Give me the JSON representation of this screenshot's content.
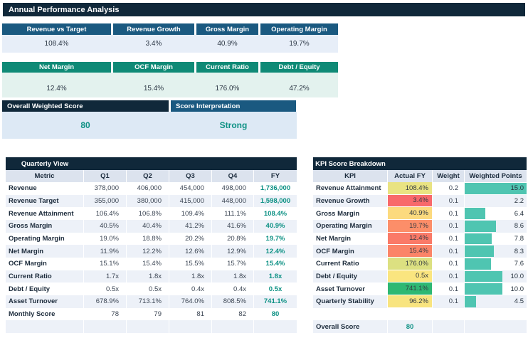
{
  "header": {
    "title": "Annual Performance Analysis"
  },
  "colors": {
    "navy_dark": "#10283a",
    "blue_header": "#1a5980",
    "teal_header": "#0f8a76",
    "teal_text": "#0d9184",
    "bar_teal": "#4fc5b1",
    "stripe": "#edf1f8"
  },
  "kpi_cards": {
    "row1": [
      {
        "label": "Revenue vs Target",
        "value": "108.4%"
      },
      {
        "label": "Revenue Growth",
        "value": "3.4%"
      },
      {
        "label": "Gross Margin",
        "value": "40.9%"
      },
      {
        "label": "Operating Margin",
        "value": "19.7%"
      }
    ],
    "row2": [
      {
        "label": "Net Margin",
        "value": "12.4%"
      },
      {
        "label": "OCF Margin",
        "value": "15.4%"
      },
      {
        "label": "Current Ratio",
        "value": "176.0%"
      },
      {
        "label": "Debt / Equity",
        "value": "47.2%"
      }
    ]
  },
  "score_summary": {
    "score_label": "Overall Weighted Score",
    "score_value": "80",
    "interpretation_label": "Score Interpretation",
    "interpretation_value": "Strong"
  },
  "quarterly": {
    "title": "Quarterly View",
    "columns": [
      "Metric",
      "Q1",
      "Q2",
      "Q3",
      "Q4",
      "FY"
    ],
    "rows": [
      {
        "metric": "Revenue",
        "values": [
          "378,000",
          "406,000",
          "454,000",
          "498,000"
        ],
        "fy": "1,736,000"
      },
      {
        "metric": "Revenue Target",
        "values": [
          "355,000",
          "380,000",
          "415,000",
          "448,000"
        ],
        "fy": "1,598,000"
      },
      {
        "metric": "Revenue Attainment",
        "values": [
          "106.4%",
          "106.8%",
          "109.4%",
          "111.1%"
        ],
        "fy": "108.4%"
      },
      {
        "metric": "Gross Margin",
        "values": [
          "40.5%",
          "40.4%",
          "41.2%",
          "41.6%"
        ],
        "fy": "40.9%"
      },
      {
        "metric": "Operating Margin",
        "values": [
          "19.0%",
          "18.8%",
          "20.2%",
          "20.8%"
        ],
        "fy": "19.7%"
      },
      {
        "metric": "Net Margin",
        "values": [
          "11.9%",
          "12.2%",
          "12.6%",
          "12.9%"
        ],
        "fy": "12.4%"
      },
      {
        "metric": "OCF Margin",
        "values": [
          "15.1%",
          "15.4%",
          "15.5%",
          "15.7%"
        ],
        "fy": "15.4%"
      },
      {
        "metric": "Current Ratio",
        "values": [
          "1.7x",
          "1.8x",
          "1.8x",
          "1.8x"
        ],
        "fy": "1.8x"
      },
      {
        "metric": "Debt / Equity",
        "values": [
          "0.5x",
          "0.5x",
          "0.4x",
          "0.4x"
        ],
        "fy": "0.5x"
      },
      {
        "metric": "Asset Turnover",
        "values": [
          "678.9%",
          "713.1%",
          "764.0%",
          "808.5%"
        ],
        "fy": "741.1%"
      },
      {
        "metric": "Monthly Score",
        "values": [
          "78",
          "79",
          "81",
          "82"
        ],
        "fy": "80"
      }
    ]
  },
  "kpi_breakdown": {
    "title": "KPI Score Breakdown",
    "columns": [
      "KPI",
      "Actual FY",
      "Weight",
      "Weighted Points"
    ],
    "rows": [
      {
        "kpi": "Revenue Attainment",
        "actual": "108.4%",
        "actual_color": "#e9e382",
        "weight": "0.2",
        "points": "15.0",
        "points_value": 15.0
      },
      {
        "kpi": "Revenue Growth",
        "actual": "3.4%",
        "actual_color": "#f8696b",
        "weight": "0.1",
        "points": "2.2",
        "points_value": 2.2
      },
      {
        "kpi": "Gross Margin",
        "actual": "40.9%",
        "actual_color": "#fcda7e",
        "weight": "0.1",
        "points": "6.4",
        "points_value": 6.4
      },
      {
        "kpi": "Operating Margin",
        "actual": "19.7%",
        "actual_color": "#fc8e69",
        "weight": "0.1",
        "points": "8.6",
        "points_value": 8.6
      },
      {
        "kpi": "Net Margin",
        "actual": "12.4%",
        "actual_color": "#fa7a68",
        "weight": "0.1",
        "points": "7.8",
        "points_value": 7.8
      },
      {
        "kpi": "OCF Margin",
        "actual": "15.4%",
        "actual_color": "#fb8468",
        "weight": "0.1",
        "points": "8.3",
        "points_value": 8.3
      },
      {
        "kpi": "Current Ratio",
        "actual": "176.0%",
        "actual_color": "#dce081",
        "weight": "0.1",
        "points": "7.6",
        "points_value": 7.6
      },
      {
        "kpi": "Debt / Equity",
        "actual": "0.5x",
        "actual_color": "#fae57f",
        "weight": "0.1",
        "points": "10.0",
        "points_value": 10.0
      },
      {
        "kpi": "Asset Turnover",
        "actual": "741.1%",
        "actual_color": "#2eb873",
        "weight": "0.1",
        "points": "10.0",
        "points_value": 10.0
      },
      {
        "kpi": "Quarterly Stability",
        "actual": "96.2%",
        "actual_color": "#f8e47f",
        "weight": "0.1",
        "points": "4.5",
        "points_value": 4.5
      }
    ],
    "overall_label": "Overall Score",
    "overall_value": "80"
  }
}
